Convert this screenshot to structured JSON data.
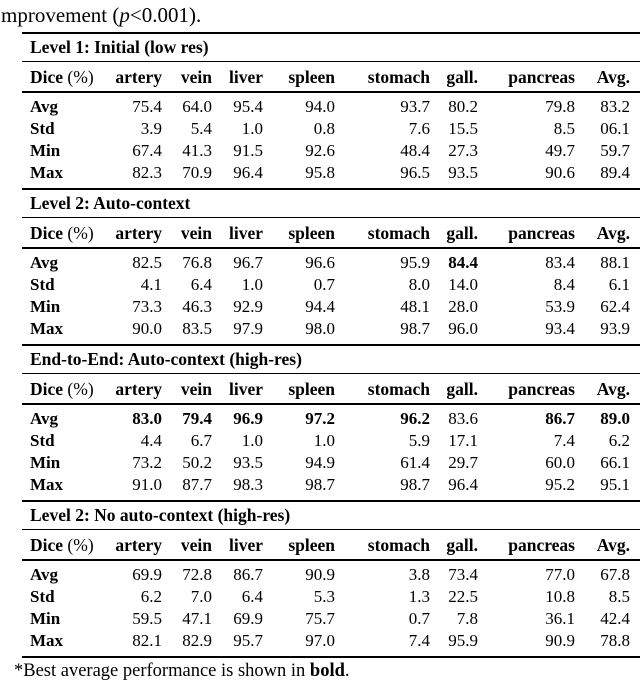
{
  "page": {
    "top_text": {
      "pre": "mprovement (",
      "var": "p",
      "post": "<0.001)."
    },
    "footnote": {
      "prefix": "*Best average performance is shown in ",
      "bold_word": "bold",
      "suffix": "."
    }
  },
  "table": {
    "header_label_bold": "Dice",
    "header_label_unit": "(%)",
    "columns": [
      "artery",
      "vein",
      "liver",
      "spleen",
      "stomach",
      "gall.",
      "pancreas",
      "Avg."
    ],
    "sections": [
      {
        "title": "Level 1: Initial (low res)",
        "rows": [
          {
            "label": "Avg",
            "values": [
              "75.4",
              "64.0",
              "95.4",
              "94.0",
              "93.7",
              "80.2",
              "79.8",
              "83.2"
            ],
            "bold": []
          },
          {
            "label": "Std",
            "values": [
              "3.9",
              "5.4",
              "1.0",
              "0.8",
              "7.6",
              "15.5",
              "8.5",
              "06.1"
            ],
            "bold": []
          },
          {
            "label": "Min",
            "values": [
              "67.4",
              "41.3",
              "91.5",
              "92.6",
              "48.4",
              "27.3",
              "49.7",
              "59.7"
            ],
            "bold": []
          },
          {
            "label": "Max",
            "values": [
              "82.3",
              "70.9",
              "96.4",
              "95.8",
              "96.5",
              "93.5",
              "90.6",
              "89.4"
            ],
            "bold": []
          }
        ]
      },
      {
        "title": "Level 2: Auto-context",
        "rows": [
          {
            "label": "Avg",
            "values": [
              "82.5",
              "76.8",
              "96.7",
              "96.6",
              "95.9",
              "84.4",
              "83.4",
              "88.1"
            ],
            "bold": [
              5
            ]
          },
          {
            "label": "Std",
            "values": [
              "4.1",
              "6.4",
              "1.0",
              "0.7",
              "8.0",
              "14.0",
              "8.4",
              "6.1"
            ],
            "bold": []
          },
          {
            "label": "Min",
            "values": [
              "73.3",
              "46.3",
              "92.9",
              "94.4",
              "48.1",
              "28.0",
              "53.9",
              "62.4"
            ],
            "bold": []
          },
          {
            "label": "Max",
            "values": [
              "90.0",
              "83.5",
              "97.9",
              "98.0",
              "98.7",
              "96.0",
              "93.4",
              "93.9"
            ],
            "bold": []
          }
        ]
      },
      {
        "title": "End-to-End: Auto-context (high-res)",
        "rows": [
          {
            "label": "Avg",
            "values": [
              "83.0",
              "79.4",
              "96.9",
              "97.2",
              "96.2",
              "83.6",
              "86.7",
              "89.0"
            ],
            "bold": [
              0,
              1,
              2,
              3,
              4,
              6,
              7
            ]
          },
          {
            "label": "Std",
            "values": [
              "4.4",
              "6.7",
              "1.0",
              "1.0",
              "5.9",
              "17.1",
              "7.4",
              "6.2"
            ],
            "bold": []
          },
          {
            "label": "Min",
            "values": [
              "73.2",
              "50.2",
              "93.5",
              "94.9",
              "61.4",
              "29.7",
              "60.0",
              "66.1"
            ],
            "bold": []
          },
          {
            "label": "Max",
            "values": [
              "91.0",
              "87.7",
              "98.3",
              "98.7",
              "98.7",
              "96.4",
              "95.2",
              "95.1"
            ],
            "bold": []
          }
        ]
      },
      {
        "title": "Level 2: No auto-context (high-res)",
        "rows": [
          {
            "label": "Avg",
            "values": [
              "69.9",
              "72.8",
              "86.7",
              "90.9",
              "3.8",
              "73.4",
              "77.0",
              "67.8"
            ],
            "bold": []
          },
          {
            "label": "Std",
            "values": [
              "6.2",
              "7.0",
              "6.4",
              "5.3",
              "1.3",
              "22.5",
              "10.8",
              "8.5"
            ],
            "bold": []
          },
          {
            "label": "Min",
            "values": [
              "59.5",
              "47.1",
              "69.9",
              "75.7",
              "0.7",
              "7.8",
              "36.1",
              "42.4"
            ],
            "bold": []
          },
          {
            "label": "Max",
            "values": [
              "82.1",
              "82.9",
              "95.7",
              "97.0",
              "7.4",
              "95.9",
              "90.9",
              "78.8"
            ],
            "bold": []
          }
        ]
      }
    ]
  }
}
